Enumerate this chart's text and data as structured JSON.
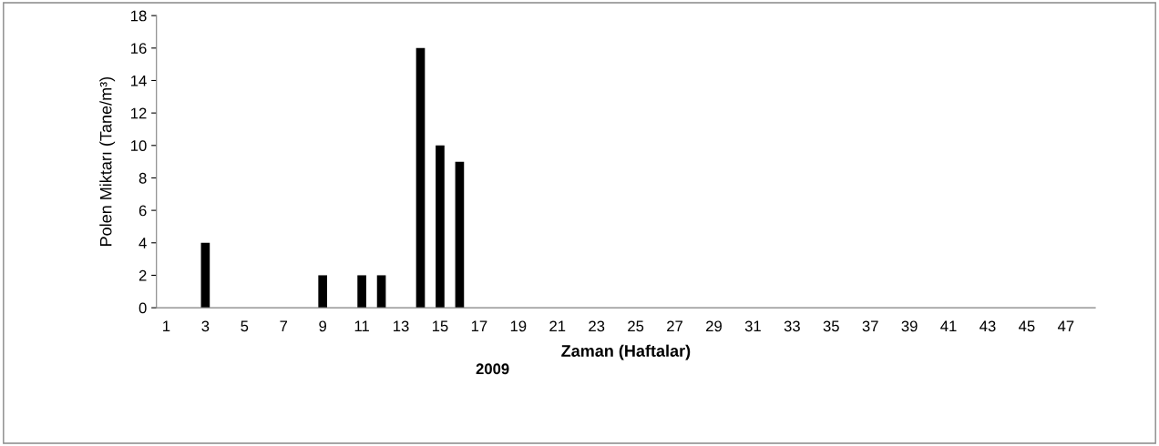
{
  "chart_data": {
    "type": "bar",
    "xlabel": "Zaman (Haftalar)",
    "ylabel": "Polen Miktarı (Tane/m³)",
    "annotations": [
      "2009"
    ],
    "categories": [
      "1",
      null,
      "3",
      null,
      "5",
      null,
      "7",
      null,
      "9",
      null,
      "11",
      null,
      "13",
      null,
      "15",
      null,
      "17",
      null,
      "19",
      null,
      "21",
      null,
      "23",
      null,
      "25",
      null,
      "27",
      null,
      "29",
      null,
      "31",
      null,
      "33",
      null,
      "35",
      null,
      "37",
      null,
      "39",
      null,
      "41",
      null,
      "43",
      null,
      "45",
      null,
      "47",
      null
    ],
    "values": [
      0,
      0,
      4,
      0,
      0,
      0,
      0,
      0,
      2,
      0,
      2,
      2,
      0,
      16,
      10,
      9,
      0,
      0,
      0,
      0,
      0,
      0,
      0,
      0,
      0,
      0,
      0,
      0,
      0,
      0,
      0,
      0,
      0,
      0,
      0,
      0,
      0,
      0,
      0,
      0,
      0,
      0,
      0,
      0,
      0,
      0,
      0,
      0
    ],
    "color": "#000000",
    "ylim": [
      0,
      18
    ],
    "yticks": [
      0,
      2,
      4,
      6,
      8,
      10,
      12,
      14,
      16,
      18
    ],
    "grid": false,
    "legend": false
  }
}
